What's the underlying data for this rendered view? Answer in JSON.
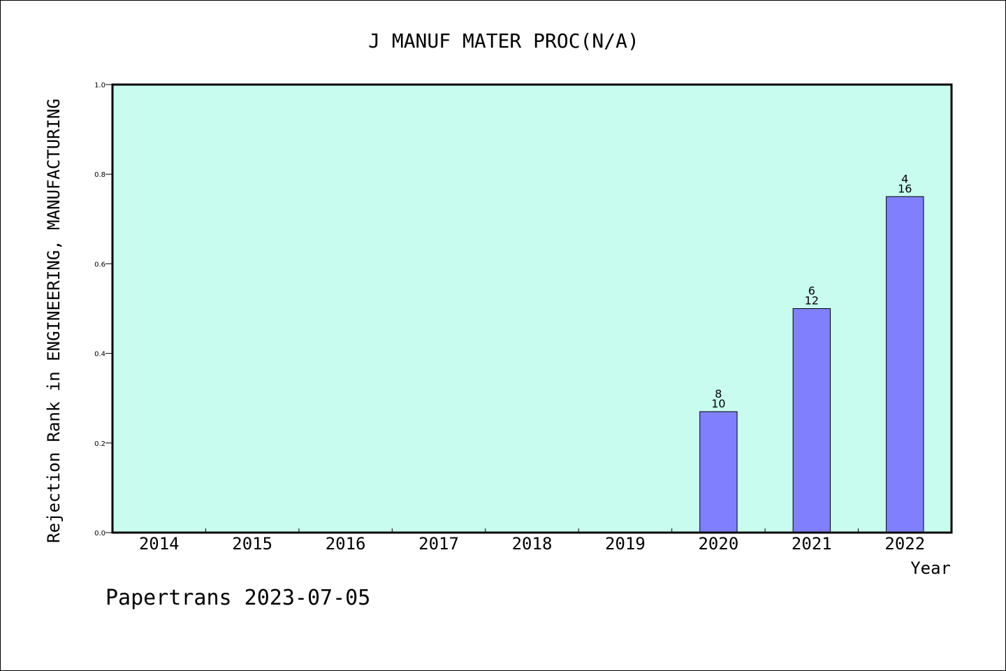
{
  "footer": "Papertrans 2023-07-05",
  "colors": {
    "plot_background": "#c8fcee",
    "bar_fill": "#8080ff",
    "bar_stroke": "#000000",
    "axis": "#000000"
  },
  "chart_data": {
    "type": "bar",
    "title": "J MANUF MATER PROC(N/A)",
    "xlabel": "Year",
    "ylabel": "Rejection Rank in ENGINEERING, MANUFACTURING",
    "ylim": [
      0,
      1.0
    ],
    "yticks": [
      "0.0",
      "0.2",
      "0.4",
      "0.6",
      "0.8",
      "1.0"
    ],
    "grid": false,
    "categories": [
      "2014",
      "2015",
      "2016",
      "2017",
      "2018",
      "2019",
      "2020",
      "2021",
      "2022"
    ],
    "values": [
      null,
      null,
      null,
      null,
      null,
      null,
      0.27,
      0.5,
      0.75
    ],
    "bar_labels": [
      null,
      null,
      null,
      null,
      null,
      null,
      {
        "top": "8",
        "bottom": "10"
      },
      {
        "top": "6",
        "bottom": "12"
      },
      {
        "top": "4",
        "bottom": "16"
      }
    ]
  }
}
